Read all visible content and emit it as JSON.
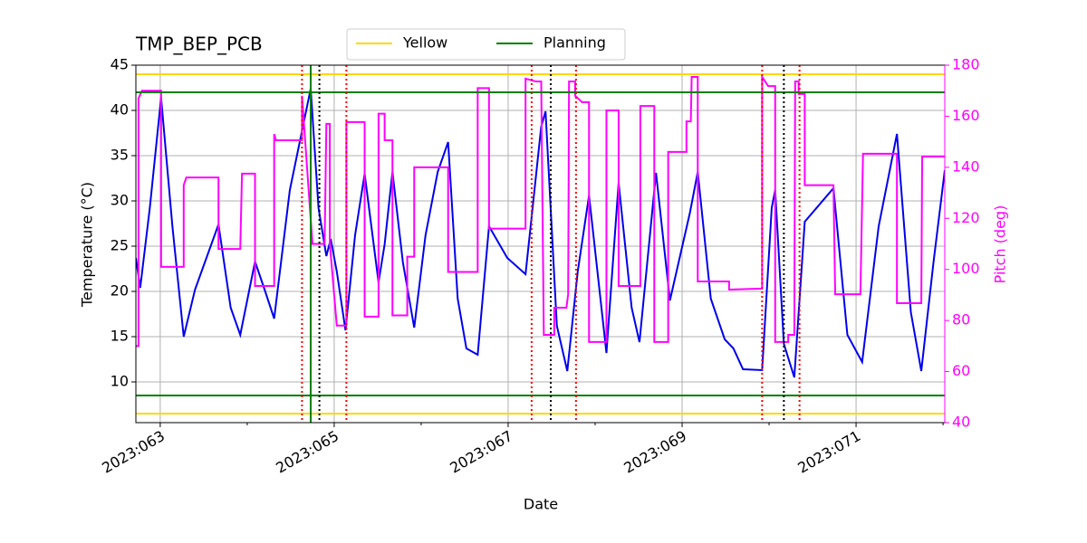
{
  "chart_data": {
    "type": "line",
    "title": "TMP_BEP_PCB",
    "xlabel": "Date",
    "ylabel": "Temperature (°C)",
    "y2label": "Pitch (deg)",
    "y2color": "#ff00ff",
    "grid": true,
    "legend": "upper center",
    "xlim": [
      62.72,
      72.02
    ],
    "xticks": [
      {
        "value": 63,
        "label": "2023:063"
      },
      {
        "value": 65,
        "label": "2023:065"
      },
      {
        "value": 67,
        "label": "2023:067"
      },
      {
        "value": 69,
        "label": "2023:069"
      },
      {
        "value": 71,
        "label": "2023:071"
      }
    ],
    "xminorticks": [
      64,
      66,
      68,
      70,
      72
    ],
    "ylim": [
      5.5,
      45
    ],
    "yticks": [
      10,
      15,
      20,
      25,
      30,
      35,
      40,
      45
    ],
    "y2lim": [
      40,
      180
    ],
    "y2ticks": [
      40,
      60,
      80,
      100,
      120,
      140,
      160,
      180
    ],
    "hlines": [
      {
        "name": "Yellow",
        "color": "#ffd700",
        "values": [
          44,
          6.5
        ]
      },
      {
        "name": "Planning",
        "color": "#008000",
        "values": [
          42,
          8.5
        ]
      }
    ],
    "vlines": [
      {
        "color": "#008000",
        "style": "solid",
        "values": [
          64.73
        ]
      },
      {
        "color": "#ff0000",
        "style": "dotted",
        "values": [
          64.63,
          65.14,
          67.27,
          67.78,
          69.92,
          70.35
        ]
      },
      {
        "color": "#000000",
        "style": "dotted",
        "values": [
          64.83,
          67.49,
          70.17
        ]
      }
    ],
    "series": [
      {
        "color": "#0000ee",
        "axis": "y",
        "x": [
          62.72,
          62.77,
          62.88,
          63.01,
          63.14,
          63.27,
          63.4,
          63.67,
          63.81,
          63.92,
          64.09,
          64.2,
          64.31,
          64.49,
          64.73,
          64.82,
          64.91,
          64.96,
          65.03,
          65.13,
          65.24,
          65.35,
          65.51,
          65.58,
          65.67,
          65.79,
          65.92,
          66.05,
          66.19,
          66.31,
          66.42,
          66.52,
          66.65,
          66.78,
          66.99,
          67.2,
          67.38,
          67.43,
          67.56,
          67.68,
          67.8,
          67.93,
          68.13,
          68.27,
          68.42,
          68.51,
          68.7,
          68.86,
          69.09,
          69.18,
          69.33,
          69.49,
          69.59,
          69.7,
          69.92,
          70.03,
          70.07,
          70.17,
          70.29,
          70.41,
          70.74,
          70.9,
          71.07,
          71.26,
          71.47,
          71.63,
          71.75,
          71.89,
          72.02
        ],
        "values": [
          23.7,
          20.4,
          29.2,
          41.4,
          27.2,
          15.0,
          20.2,
          27.4,
          18.2,
          15.2,
          23.3,
          20.2,
          17.0,
          31.2,
          42.4,
          29.2,
          23.9,
          25.8,
          22.2,
          15.7,
          26.2,
          33.0,
          21.0,
          25.2,
          33.2,
          23.2,
          16.0,
          26.2,
          33.2,
          36.5,
          19.2,
          13.7,
          13.0,
          27.2,
          23.7,
          21.9,
          38.2,
          39.9,
          16.2,
          11.2,
          22.2,
          30.6,
          13.2,
          32.0,
          18.2,
          14.4,
          33.1,
          19.0,
          28.7,
          33.2,
          19.2,
          14.7,
          13.7,
          11.4,
          11.3,
          29.2,
          31.2,
          14.2,
          10.5,
          27.7,
          31.4,
          15.2,
          12.2,
          27.2,
          37.4,
          17.7,
          11.2,
          23.2,
          33.4
        ]
      },
      {
        "color": "#ff00ff",
        "axis": "y2",
        "x": [
          62.72,
          62.75,
          62.75,
          62.79,
          63.01,
          63.01,
          63.27,
          63.27,
          63.3,
          63.67,
          63.67,
          63.92,
          63.94,
          64.09,
          64.09,
          64.31,
          64.31,
          64.33,
          64.63,
          64.63,
          64.75,
          64.89,
          64.91,
          64.95,
          64.95,
          65.03,
          65.14,
          65.14,
          65.35,
          65.35,
          65.51,
          65.51,
          65.58,
          65.58,
          65.67,
          65.67,
          65.84,
          65.84,
          65.92,
          65.92,
          66.31,
          66.31,
          66.65,
          66.65,
          66.78,
          66.78,
          67.2,
          67.2,
          67.32,
          67.38,
          67.41,
          67.53,
          67.53,
          67.67,
          67.69,
          67.7,
          67.77,
          67.77,
          67.85,
          67.93,
          67.93,
          68.13,
          68.13,
          68.27,
          68.27,
          68.52,
          68.52,
          68.68,
          68.68,
          68.84,
          68.84,
          69.05,
          69.05,
          69.1,
          69.11,
          69.18,
          69.18,
          69.54,
          69.54,
          69.92,
          69.92,
          69.99,
          70.07,
          70.07,
          70.22,
          70.22,
          70.29,
          70.3,
          70.34,
          70.34,
          70.41,
          70.41,
          70.74,
          70.76,
          71.05,
          71.08,
          71.47,
          71.47,
          71.75,
          71.76,
          72.02
        ],
        "values": [
          70,
          70,
          167,
          170,
          170,
          101,
          101,
          133,
          136,
          136,
          108,
          108,
          137.5,
          137.5,
          93.5,
          93.5,
          153,
          150.6,
          150.6,
          168,
          110,
          110,
          157,
          157,
          110,
          78,
          78,
          157.7,
          157.7,
          81.5,
          81.5,
          161,
          161,
          150.6,
          150.6,
          82,
          82,
          105,
          105,
          140,
          140,
          99,
          99,
          171,
          171,
          116,
          116,
          174.7,
          173.6,
          173.6,
          74.4,
          74.4,
          85,
          85,
          90.3,
          173.6,
          173.6,
          168,
          165.5,
          165.5,
          71.6,
          71.6,
          162.3,
          162.3,
          93.5,
          93.5,
          164,
          164,
          71.6,
          71.6,
          146,
          146,
          158,
          158,
          175.4,
          175.4,
          95.3,
          95.3,
          92.1,
          92.5,
          175.4,
          171.8,
          171.8,
          71.6,
          71.6,
          74.4,
          74.4,
          173.6,
          173.6,
          168.7,
          168.7,
          133,
          133,
          90.3,
          90.3,
          145.3,
          145.3,
          86.8,
          86.8,
          144.2,
          144.2
        ]
      }
    ]
  }
}
